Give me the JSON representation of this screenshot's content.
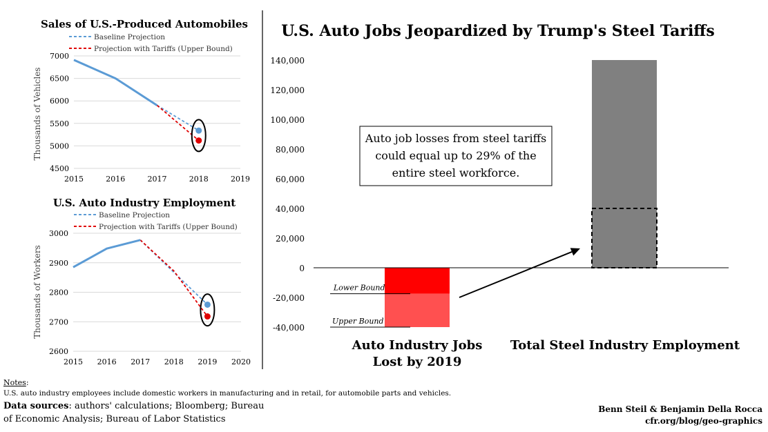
{
  "chart_data": [
    {
      "type": "line",
      "title": "Sales of U.S.-Produced Automobiles",
      "ylabel": "Thousands of Vehicles",
      "x_ticks": [
        2015,
        2016,
        2017,
        2018,
        2019
      ],
      "y_ticks": [
        4500,
        5000,
        5500,
        6000,
        6500,
        7000
      ],
      "xlim": [
        2015,
        2019
      ],
      "ylim": [
        4500,
        7000
      ],
      "grid": true,
      "legend_position": "top",
      "series": [
        {
          "name": "",
          "style": "solid",
          "color": "#5b9bd5",
          "points": [
            [
              2015,
              6910
            ],
            [
              2016,
              6500
            ],
            [
              2017,
              5900
            ]
          ]
        },
        {
          "name": "Baseline Projection",
          "style": "dashed",
          "color": "#5b9bd5",
          "points": [
            [
              2017,
              5900
            ],
            [
              2018,
              5340
            ]
          ]
        },
        {
          "name": "Projection with Tariffs (Upper Bound)",
          "style": "dashed",
          "color": "#e00000",
          "points": [
            [
              2017,
              5900
            ],
            [
              2018,
              5120
            ]
          ]
        }
      ],
      "markers": [
        {
          "x": 2018,
          "y": 5340,
          "color": "#5b9bd5"
        },
        {
          "x": 2018,
          "y": 5120,
          "color": "#e00000"
        }
      ],
      "annotation": {
        "shape": "ellipse",
        "x": 2018,
        "y": 5230
      }
    },
    {
      "type": "line",
      "title": "U.S. Auto Industry Employment",
      "ylabel": "Thousands of Workers",
      "x_ticks": [
        2015,
        2016,
        2017,
        2018,
        2019,
        2020
      ],
      "y_ticks": [
        2600,
        2700,
        2800,
        2900,
        3000
      ],
      "xlim": [
        2015,
        2020
      ],
      "ylim": [
        2600,
        3000
      ],
      "grid": true,
      "legend_position": "top",
      "series": [
        {
          "name": "",
          "style": "solid",
          "color": "#5b9bd5",
          "points": [
            [
              2015,
              2885
            ],
            [
              2016,
              2948
            ],
            [
              2017,
              2977
            ]
          ]
        },
        {
          "name": "Baseline Projection",
          "style": "dashed",
          "color": "#5b9bd5",
          "points": [
            [
              2017,
              2977
            ],
            [
              2019,
              2758
            ]
          ]
        },
        {
          "name": "Projection with Tariffs (Upper Bound)",
          "style": "dashed",
          "color": "#e00000",
          "points": [
            [
              2017,
              2977
            ],
            [
              2018,
              2872
            ],
            [
              2019,
              2718
            ]
          ]
        }
      ],
      "markers": [
        {
          "x": 2019,
          "y": 2758,
          "color": "#5b9bd5"
        },
        {
          "x": 2019,
          "y": 2718,
          "color": "#e00000"
        }
      ],
      "annotation": {
        "shape": "ellipse",
        "x": 2019,
        "y": 2740
      }
    },
    {
      "type": "bar",
      "title": "U.S. Auto Jobs Jeopardized by Trump's Steel Tariffs",
      "categories": [
        "Auto Industry Jobs Lost by 2019",
        "Total Steel Industry Employment"
      ],
      "category_lines": [
        [
          "Auto Industry Jobs",
          "Lost by 2019"
        ],
        [
          "Total Steel Industry Employment"
        ]
      ],
      "y_ticks": [
        -40000,
        -20000,
        0,
        20000,
        40000,
        60000,
        80000,
        100000,
        120000,
        140000
      ],
      "y_tick_labels": [
        "-40,000",
        "-20,000",
        "0",
        "20,000",
        "40,000",
        "60,000",
        "80,000",
        "100,000",
        "120,000",
        "140,000"
      ],
      "ylim": [
        -40000,
        140000
      ],
      "grid": false,
      "bars": [
        {
          "category": "Auto Industry Jobs Lost by 2019",
          "segments": [
            {
              "from": 0,
              "to": -17500,
              "color": "#ff0000",
              "label": "Lower Bound"
            },
            {
              "from": -17500,
              "to": -40000,
              "color": "#ff5050",
              "label": "Upper Bound"
            }
          ]
        },
        {
          "category": "Total Steel Industry Employment",
          "segments": [
            {
              "from": 0,
              "to": 140000,
              "color": "#808080"
            }
          ],
          "dashed_outline": {
            "from": 0,
            "to": 40000
          }
        }
      ],
      "annotation_box": {
        "lines": [
          "Auto job losses from steel tariffs",
          "could equal up to 29% of the",
          "entire steel workforce."
        ]
      },
      "arrow": {
        "from": {
          "category": 0,
          "y": -20000
        },
        "to": {
          "category": 1,
          "y": 13000
        }
      }
    }
  ],
  "footer": {
    "notes_label": "Notes",
    "notes_text": "U.S. auto industry employees include domestic workers in manufacturing and in retail, for automobile parts and vehicles.",
    "sources_label": "Data sources",
    "sources_text_1": ": authors' calculations; Bloomberg; Bureau",
    "sources_text_2": "of Economic Analysis; Bureau of Labor Statistics",
    "authors": "Benn Steil & Benjamin Della Rocca",
    "url": "cfr.org/blog/geo-graphics"
  }
}
